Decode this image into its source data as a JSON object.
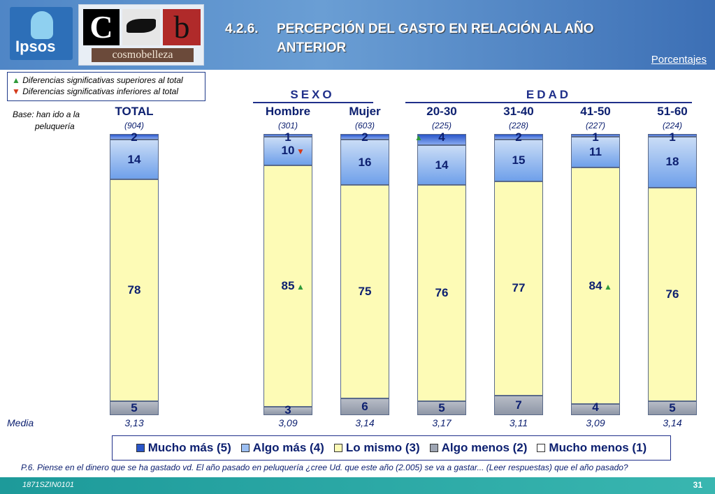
{
  "header": {
    "logo_ipsos": "Ipsos",
    "logo_cb_left": "C",
    "logo_cb_right": "b",
    "logo_cb_word": "cosmobelleza",
    "title_number": "4.2.6.",
    "title_line1": "PERCEPCIÓN DEL GASTO EN RELACIÓN AL AÑO",
    "title_line2": "ANTERIOR",
    "porcentajes_link": "Porcentajes"
  },
  "legend_box": {
    "up_symbol": "▲",
    "up_text": "Diferencias significativas superiores al total",
    "down_symbol": "▼",
    "down_text": "Diferencias significativas inferiores al total"
  },
  "base": {
    "line1": "Base: han ido a la",
    "line2": "peluquería"
  },
  "groups": {
    "sexo": "SEXO",
    "edad": "EDAD"
  },
  "media_label": "Media",
  "chart_data": {
    "type": "bar",
    "stacked": true,
    "categories": [
      "TOTAL",
      "Hombre",
      "Mujer",
      "20-30",
      "31-40",
      "41-50",
      "51-60"
    ],
    "sample_sizes": [
      "(904)",
      "(301)",
      "(603)",
      "(225)",
      "(228)",
      "(227)",
      "(224)"
    ],
    "media": [
      "3,13",
      "3,09",
      "3,14",
      "3,17",
      "3,11",
      "3,09",
      "3,14"
    ],
    "series": [
      {
        "name": "Mucho más (5)",
        "values": [
          2,
          1,
          2,
          4,
          2,
          1,
          1
        ]
      },
      {
        "name": "Algo más (4)",
        "values": [
          14,
          10,
          16,
          14,
          15,
          11,
          18
        ]
      },
      {
        "name": "Lo mismo (3)",
        "values": [
          78,
          85,
          75,
          76,
          77,
          84,
          76
        ]
      },
      {
        "name": "Algo menos (2)",
        "values": [
          5,
          3,
          6,
          5,
          7,
          4,
          5
        ]
      },
      {
        "name": "Mucho menos (1)",
        "values": [
          0,
          0,
          0,
          0,
          0,
          0,
          0
        ]
      }
    ],
    "significance": [
      {
        "category": "20-30",
        "series": "Mucho más (5)",
        "direction": "up"
      },
      {
        "category": "Hombre",
        "series": "Algo más (4)",
        "direction": "down"
      },
      {
        "category": "Hombre",
        "series": "Lo mismo (3)",
        "direction": "up"
      },
      {
        "category": "41-50",
        "series": "Lo mismo (3)",
        "direction": "up"
      }
    ],
    "ylim": [
      0,
      100
    ],
    "colors": {
      "mucho_mas": "#2a56c9",
      "algo_mas": "#9cbff2",
      "lo_mismo": "#fdfbb6",
      "algo_menos": "#9ea5b3",
      "mucho_menos": "#ffffff"
    },
    "legend_position": "bottom"
  },
  "question": "P.6.  Piense en el dinero que se ha gastado vd. El año pasado en peluquería ¿cree Ud. que este año (2.005) se va a gastar... (Leer respuestas) que el año pasado?",
  "footer": {
    "code": "1871SZIN0101",
    "page": "31"
  }
}
